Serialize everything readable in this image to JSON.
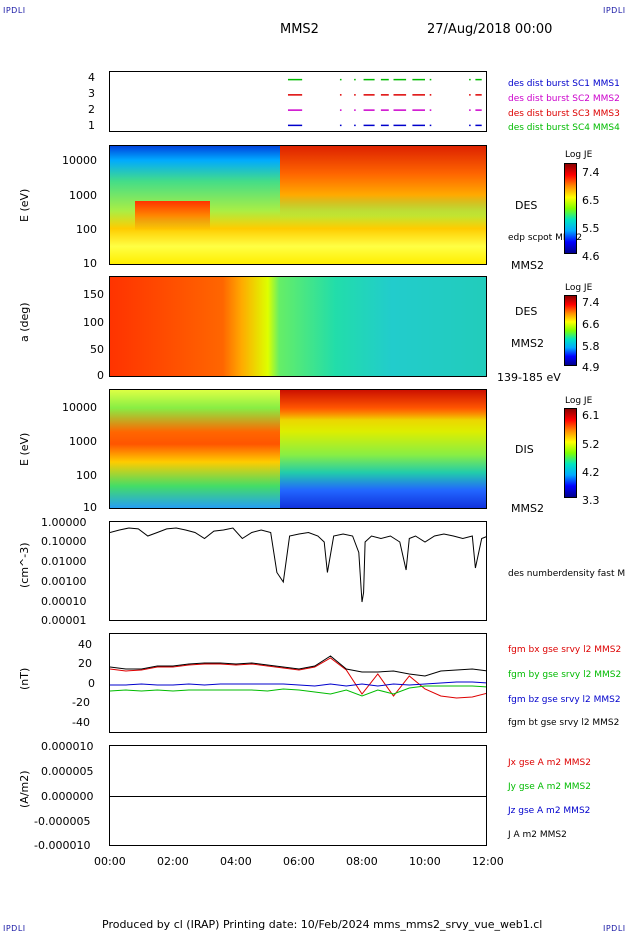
{
  "header": {
    "corner_tl": "IPDLI",
    "corner_tr": "IPDLI",
    "corner_bl": "IPDLI",
    "corner_br": "IPDLI",
    "spacecraft": "MMS2",
    "datetime": "27/Aug/2018 00:00"
  },
  "footer": {
    "text": "Produced by cl (IRAP)    Printing date: 10/Feb/2024   mms_mms2_srvy_vue_web1.cl"
  },
  "colors": {
    "red": "#dd0000",
    "green": "#00bb00",
    "blue": "#0000cc",
    "magenta": "#cc00cc",
    "black": "#000000"
  },
  "chart_data": [
    {
      "type": "line",
      "panel": "burst-availability",
      "yticks": [
        "4",
        "3",
        "2",
        "1"
      ],
      "series": [
        {
          "name": "des dist burst SC1 MMS1",
          "color": "#0000cc",
          "y": 1,
          "intervals": [
            [
              5.65,
              6.1
            ],
            [
              7.3,
              7.35
            ],
            [
              7.75,
              7.8
            ],
            [
              8.05,
              8.4
            ],
            [
              8.6,
              8.85
            ],
            [
              9.0,
              9.4
            ],
            [
              9.6,
              10.0
            ],
            [
              10.15,
              10.2
            ],
            [
              11.4,
              11.45
            ],
            [
              11.6,
              11.8
            ]
          ]
        },
        {
          "name": "des dist burst SC2 MMS2",
          "color": "#cc00cc",
          "y": 2,
          "intervals": [
            [
              5.65,
              6.1
            ],
            [
              7.3,
              7.35
            ],
            [
              7.75,
              7.8
            ],
            [
              8.05,
              8.4
            ],
            [
              8.6,
              8.85
            ],
            [
              9.0,
              9.4
            ],
            [
              9.6,
              10.0
            ],
            [
              10.15,
              10.2
            ],
            [
              11.4,
              11.45
            ],
            [
              11.6,
              11.8
            ]
          ]
        },
        {
          "name": "des dist burst SC3 MMS3",
          "color": "#dd0000",
          "y": 3,
          "intervals": [
            [
              5.65,
              6.1
            ],
            [
              7.3,
              7.35
            ],
            [
              7.75,
              7.8
            ],
            [
              8.05,
              8.4
            ],
            [
              8.6,
              8.85
            ],
            [
              9.0,
              9.4
            ],
            [
              9.6,
              10.0
            ],
            [
              10.15,
              10.2
            ],
            [
              11.4,
              11.45
            ],
            [
              11.6,
              11.8
            ]
          ]
        },
        {
          "name": "des dist burst SC4 MMS4",
          "color": "#00bb00",
          "y": 4,
          "intervals": [
            [
              5.65,
              6.1
            ],
            [
              7.3,
              7.35
            ],
            [
              7.75,
              7.8
            ],
            [
              8.05,
              8.4
            ],
            [
              8.6,
              8.85
            ],
            [
              9.0,
              9.4
            ],
            [
              9.6,
              10.0
            ],
            [
              10.15,
              10.2
            ],
            [
              11.4,
              11.45
            ],
            [
              11.6,
              11.8
            ]
          ]
        }
      ]
    },
    {
      "type": "heatmap",
      "panel": "des-energy",
      "ylabel": "E (eV)",
      "yticks": [
        "10000",
        "1000",
        "100",
        "10"
      ],
      "right_label": "DES",
      "sub_label": "edp scpot MMS2",
      "bottom_label": "MMS2",
      "colorbar": {
        "title": "Log JE",
        "ticks": [
          "7.4",
          "6.5",
          "5.5",
          "4.6"
        ]
      }
    },
    {
      "type": "heatmap",
      "panel": "des-pitch",
      "ylabel": "a (deg)",
      "yticks": [
        "150",
        "100",
        "50",
        "0"
      ],
      "right_label": "DES",
      "sub_label": "MMS2",
      "bottom_label": "139-185 eV",
      "colorbar": {
        "title": "Log JE",
        "ticks": [
          "7.4",
          "6.6",
          "5.8",
          "4.9"
        ]
      }
    },
    {
      "type": "heatmap",
      "panel": "dis-energy",
      "ylabel": "E (eV)",
      "yticks": [
        "10000",
        "1000",
        "100",
        "10"
      ],
      "right_label": "DIS",
      "bottom_label": "MMS2",
      "colorbar": {
        "title": "Log JE",
        "ticks": [
          "6.1",
          "5.2",
          "4.2",
          "3.3"
        ]
      }
    },
    {
      "type": "line",
      "panel": "density",
      "ylabel": "(cm^-3)",
      "yticks": [
        "1.00000",
        "0.10000",
        "0.01000",
        "0.00100",
        "0.00010",
        "0.00001"
      ],
      "series": [
        {
          "name": "des numberdensity fast M",
          "color": "#000000",
          "x": [
            0.0,
            0.3,
            0.6,
            0.9,
            1.2,
            1.5,
            1.8,
            2.1,
            2.4,
            2.7,
            3.0,
            3.3,
            3.6,
            3.9,
            4.2,
            4.5,
            4.8,
            5.1,
            5.3,
            5.5,
            5.7,
            6.0,
            6.3,
            6.6,
            6.8,
            6.9,
            7.1,
            7.4,
            7.7,
            7.9,
            8.0,
            8.05,
            8.1,
            8.3,
            8.6,
            8.9,
            9.2,
            9.4,
            9.5,
            9.7,
            10.0,
            10.3,
            10.6,
            10.9,
            11.2,
            11.5,
            11.6,
            11.8,
            12.0
          ],
          "y": [
            0.3,
            0.4,
            0.5,
            0.45,
            0.2,
            0.3,
            0.45,
            0.5,
            0.4,
            0.3,
            0.15,
            0.35,
            0.4,
            0.5,
            0.15,
            0.3,
            0.4,
            0.3,
            0.003,
            0.001,
            0.2,
            0.25,
            0.3,
            0.2,
            0.1,
            0.003,
            0.2,
            0.25,
            0.2,
            0.03,
            0.0001,
            0.0003,
            0.1,
            0.2,
            0.15,
            0.2,
            0.1,
            0.004,
            0.15,
            0.2,
            0.1,
            0.2,
            0.25,
            0.2,
            0.15,
            0.2,
            0.005,
            0.15,
            0.2
          ]
        }
      ]
    },
    {
      "type": "line",
      "panel": "magnetic-field",
      "ylabel": "(nT)",
      "yticks": [
        "40",
        "20",
        "0",
        "-20",
        "-40"
      ],
      "series": [
        {
          "name": "fgm bx gse srvy l2 MMS2",
          "color": "#dd0000",
          "x": [
            0,
            0.5,
            1,
            1.5,
            2,
            2.5,
            3,
            3.5,
            4,
            4.5,
            5,
            5.5,
            6,
            6.5,
            7,
            7.5,
            8,
            8.5,
            9,
            9.5,
            10,
            10.5,
            11,
            11.5,
            12
          ],
          "y": [
            15,
            13,
            14,
            17,
            17,
            19,
            20,
            20,
            19,
            20,
            18,
            16,
            14,
            17,
            26,
            14,
            -10,
            10,
            -12,
            8,
            -5,
            -12,
            -14,
            -13,
            -9
          ]
        },
        {
          "name": "fgm by gse srvy l2 MMS2",
          "color": "#00bb00",
          "x": [
            0,
            0.5,
            1,
            1.5,
            2,
            2.5,
            3,
            3.5,
            4,
            4.5,
            5,
            5.5,
            6,
            6.5,
            7,
            7.5,
            8,
            8.5,
            9,
            9.5,
            10,
            10.5,
            11,
            11.5,
            12
          ],
          "y": [
            -7,
            -6,
            -7,
            -6,
            -7,
            -6,
            -6,
            -6,
            -6,
            -6,
            -7,
            -5,
            -6,
            -8,
            -10,
            -6,
            -12,
            -6,
            -10,
            -4,
            -2,
            -2,
            -2,
            -2,
            -3
          ]
        },
        {
          "name": "fgm bz gse srvy l2 MMS2",
          "color": "#0000cc",
          "x": [
            0,
            0.5,
            1,
            1.5,
            2,
            2.5,
            3,
            3.5,
            4,
            4.5,
            5,
            5.5,
            6,
            6.5,
            7,
            7.5,
            8,
            8.5,
            9,
            9.5,
            10,
            10.5,
            11,
            11.5,
            12
          ],
          "y": [
            -1,
            -1,
            0,
            -1,
            -1,
            0,
            -1,
            0,
            0,
            0,
            0,
            0,
            -1,
            -2,
            0,
            -2,
            0,
            -2,
            0,
            -1,
            0,
            1,
            2,
            2,
            1
          ]
        },
        {
          "name": "fgm bt gse srvy l2 MMS2",
          "color": "#000000",
          "x": [
            0,
            0.5,
            1,
            1.5,
            2,
            2.5,
            3,
            3.5,
            4,
            4.5,
            5,
            5.5,
            6,
            6.5,
            7,
            7.5,
            8,
            8.5,
            9,
            9.5,
            10,
            10.5,
            11,
            11.5,
            12
          ],
          "y": [
            17,
            15,
            15,
            18,
            18,
            20,
            21,
            21,
            20,
            21,
            19,
            17,
            15,
            18,
            28,
            15,
            12,
            12,
            13,
            10,
            8,
            13,
            14,
            15,
            13
          ]
        }
      ]
    },
    {
      "type": "line",
      "panel": "current-density",
      "ylabel": "(A/m2)",
      "yticks": [
        "0.000010",
        "0.000005",
        "0.000000",
        "-0.000005",
        "-0.000010"
      ],
      "series": [
        {
          "name": "Jx gse A m2 MMS2",
          "color": "#dd0000",
          "x": [
            0,
            12
          ],
          "y": [
            0,
            0
          ]
        },
        {
          "name": "Jy gse A m2 MMS2",
          "color": "#00bb00",
          "x": [
            0,
            12
          ],
          "y": [
            0,
            0
          ]
        },
        {
          "name": "Jz gse A m2 MMS2",
          "color": "#0000cc",
          "x": [
            0,
            12
          ],
          "y": [
            0,
            0
          ]
        },
        {
          "name": "J A m2 MMS2",
          "color": "#000000",
          "x": [
            0,
            12
          ],
          "y": [
            0,
            0
          ]
        }
      ]
    }
  ],
  "xaxis": {
    "ticks": [
      "00:00",
      "02:00",
      "04:00",
      "06:00",
      "08:00",
      "10:00",
      "12:00"
    ],
    "range": [
      0,
      12
    ]
  }
}
